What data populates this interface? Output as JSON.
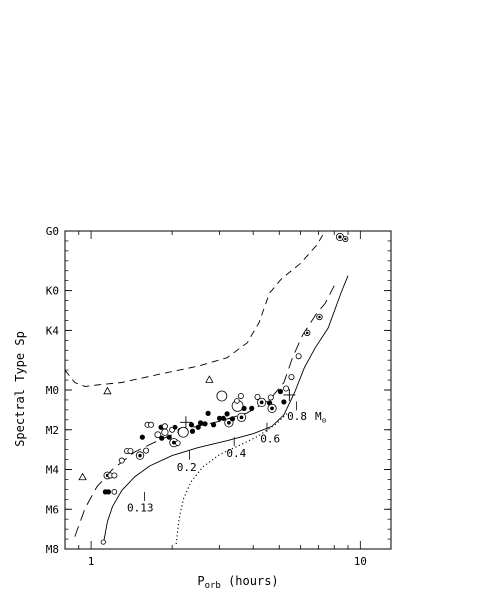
{
  "chart_data": {
    "type": "scatter",
    "xlabel_main": "P",
    "xlabel_sub": "orb",
    "xlabel_rest": " (hours)",
    "ylabel": "Spectral Type Sp",
    "x_scale": "log",
    "x_ticks": [
      {
        "value": 1,
        "label": "1"
      },
      {
        "value": 10,
        "label": "10"
      }
    ],
    "y_ticks": [
      {
        "value": 0,
        "label": "G0"
      },
      {
        "value": 12,
        "label": "K0"
      },
      {
        "value": 20,
        "label": "K4"
      },
      {
        "value": 32,
        "label": "M0"
      },
      {
        "value": 40,
        "label": "M2"
      },
      {
        "value": 48,
        "label": "M4"
      },
      {
        "value": 56,
        "label": "M6"
      },
      {
        "value": 64,
        "label": "M8"
      }
    ],
    "xlim": [
      0.8,
      13
    ],
    "ylim": [
      0,
      64
    ],
    "annotations": [
      {
        "text": "0.13",
        "x": 1.58,
        "y": 52.5,
        "tx": 1.36,
        "ty": 56.5
      },
      {
        "text": "0.2",
        "x": 2.32,
        "y": 44.2,
        "tx": 2.08,
        "ty": 48.3
      },
      {
        "text": "0.4",
        "x": 3.4,
        "y": 41.5,
        "tx": 3.18,
        "ty": 45.5
      },
      {
        "text": "0.6",
        "x": 4.5,
        "y": 38.6,
        "tx": 4.25,
        "ty": 42.6
      },
      {
        "text": "0.8",
        "x": 5.8,
        "y": 34.3,
        "tx": 5.35,
        "ty": 38.0
      }
    ],
    "mass_unit_main": "M",
    "mass_unit_sub": "⊙",
    "series": [
      {
        "style": "solid",
        "points": [
          [
            1.11,
            63
          ],
          [
            1.15,
            58.5
          ],
          [
            1.2,
            55.5
          ],
          [
            1.3,
            52.2
          ],
          [
            1.45,
            49.5
          ],
          [
            1.65,
            47.3
          ],
          [
            2.0,
            45.2
          ],
          [
            2.5,
            43.6
          ],
          [
            3.2,
            42.2
          ],
          [
            4.0,
            40.8
          ],
          [
            4.7,
            39.3
          ],
          [
            5.2,
            37
          ],
          [
            5.7,
            32.5
          ],
          [
            6.2,
            27.5
          ],
          [
            6.8,
            23.5
          ],
          [
            7.6,
            19.5
          ],
          [
            8.5,
            12.3
          ],
          [
            9.0,
            9
          ]
        ]
      },
      {
        "style": "dotted",
        "points": [
          [
            2.07,
            63
          ],
          [
            2.12,
            58
          ],
          [
            2.2,
            54
          ],
          [
            2.35,
            50.5
          ],
          [
            2.6,
            47.5
          ],
          [
            3.0,
            45
          ],
          [
            3.6,
            43
          ],
          [
            4.2,
            41.2
          ],
          [
            4.9,
            38.7
          ],
          [
            5.4,
            36.5
          ]
        ]
      },
      {
        "style": "long-dash",
        "points": [
          [
            0.87,
            61.5
          ],
          [
            0.95,
            55.8
          ],
          [
            1.05,
            51.5
          ],
          [
            1.2,
            48
          ],
          [
            1.45,
            44.5
          ],
          [
            1.8,
            42
          ],
          [
            2.3,
            39.7
          ],
          [
            3.0,
            38.3
          ],
          [
            3.8,
            36.6
          ],
          [
            4.6,
            34
          ],
          [
            5.2,
            30.5
          ],
          [
            5.6,
            25.5
          ],
          [
            6.1,
            21
          ],
          [
            6.9,
            16.5
          ],
          [
            7.4,
            14.6
          ],
          [
            8.0,
            11
          ]
        ]
      },
      {
        "style": "short-dash",
        "points": [
          [
            0.8,
            28
          ],
          [
            0.87,
            30.5
          ],
          [
            0.95,
            31.3
          ],
          [
            1.05,
            31
          ],
          [
            1.3,
            30.5
          ],
          [
            1.8,
            28.8
          ],
          [
            2.5,
            27.2
          ],
          [
            3.2,
            25.5
          ],
          [
            3.8,
            22.5
          ],
          [
            4.2,
            18.5
          ],
          [
            4.6,
            12.5
          ],
          [
            5.1,
            9.6
          ],
          [
            6.0,
            6.5
          ],
          [
            6.9,
            2.8
          ],
          [
            7.4,
            0
          ]
        ]
      }
    ],
    "points": [
      {
        "x": 1.11,
        "y": 62.6,
        "m": "open",
        "s": 2.2
      },
      {
        "x": 1.13,
        "y": 52.5,
        "m": "filled",
        "s": 2.6
      },
      {
        "x": 1.16,
        "y": 52.5,
        "m": "filled",
        "s": 2.6
      },
      {
        "x": 1.15,
        "y": 49.2,
        "m": "dotted",
        "s": 3.5
      },
      {
        "x": 1.18,
        "y": 49.2,
        "m": "open",
        "s": 2.6
      },
      {
        "x": 1.22,
        "y": 49.2,
        "m": "open",
        "s": 2.6
      },
      {
        "x": 1.22,
        "y": 52.5,
        "m": "open",
        "s": 2.4
      },
      {
        "x": 1.3,
        "y": 46.2,
        "m": "open",
        "s": 2.6
      },
      {
        "x": 1.36,
        "y": 44.3,
        "m": "open",
        "s": 2.6
      },
      {
        "x": 1.4,
        "y": 44.3,
        "m": "open",
        "s": 2.6
      },
      {
        "x": 1.52,
        "y": 45.2,
        "m": "dotted",
        "s": 3.8
      },
      {
        "x": 1.6,
        "y": 44.2,
        "m": "open",
        "s": 2.6
      },
      {
        "x": 1.55,
        "y": 41.5,
        "m": "filled",
        "s": 2.6
      },
      {
        "x": 1.62,
        "y": 39.0,
        "m": "open",
        "s": 2.6
      },
      {
        "x": 1.67,
        "y": 39.0,
        "m": "open",
        "s": 2.6
      },
      {
        "x": 1.77,
        "y": 41.0,
        "m": "open",
        "s": 3.0
      },
      {
        "x": 1.83,
        "y": 41.7,
        "m": "filled",
        "s": 2.6
      },
      {
        "x": 1.82,
        "y": 39.5,
        "m": "filled",
        "s": 2.6
      },
      {
        "x": 1.88,
        "y": 40.5,
        "m": "open",
        "s": 3.2
      },
      {
        "x": 1.88,
        "y": 39.3,
        "m": "open",
        "s": 2.6
      },
      {
        "x": 1.95,
        "y": 41.5,
        "m": "filled",
        "s": 2.6
      },
      {
        "x": 2.0,
        "y": 40.0,
        "m": "open",
        "s": 2.6
      },
      {
        "x": 2.03,
        "y": 42.6,
        "m": "dotted",
        "s": 4.2
      },
      {
        "x": 2.1,
        "y": 42.7,
        "m": "open",
        "s": 2.4
      },
      {
        "x": 2.05,
        "y": 39.5,
        "m": "filled",
        "s": 2.4
      },
      {
        "x": 2.15,
        "y": 40.2,
        "m": "open",
        "s": 2.6
      },
      {
        "x": 2.2,
        "y": 40.5,
        "m": "open",
        "s": 5.0
      },
      {
        "x": 2.25,
        "y": 38.5,
        "m": "cross",
        "s": 6
      },
      {
        "x": 2.36,
        "y": 39.0,
        "m": "filled",
        "s": 2.6
      },
      {
        "x": 2.38,
        "y": 40.3,
        "m": "filled",
        "s": 2.6
      },
      {
        "x": 2.5,
        "y": 39.5,
        "m": "filled",
        "s": 2.6
      },
      {
        "x": 2.55,
        "y": 38.6,
        "m": "filled",
        "s": 2.6
      },
      {
        "x": 2.65,
        "y": 38.8,
        "m": "filled",
        "s": 2.6
      },
      {
        "x": 2.72,
        "y": 36.7,
        "m": "filled",
        "s": 2.6
      },
      {
        "x": 2.85,
        "y": 39.0,
        "m": "filled",
        "s": 2.6
      },
      {
        "x": 3.0,
        "y": 37.7,
        "m": "filled",
        "s": 2.6
      },
      {
        "x": 3.06,
        "y": 33.2,
        "m": "open",
        "s": 5.0
      },
      {
        "x": 3.1,
        "y": 37.7,
        "m": "filled",
        "s": 2.6
      },
      {
        "x": 3.2,
        "y": 36.8,
        "m": "filled",
        "s": 2.6
      },
      {
        "x": 3.25,
        "y": 38.6,
        "m": "dotted",
        "s": 4.2
      },
      {
        "x": 3.35,
        "y": 37.8,
        "m": "filled",
        "s": 2.6
      },
      {
        "x": 3.5,
        "y": 35.2,
        "m": "open",
        "s": 5.5
      },
      {
        "x": 3.6,
        "y": 33.2,
        "m": "open",
        "s": 2.6
      },
      {
        "x": 3.48,
        "y": 34.2,
        "m": "open",
        "s": 2.4
      },
      {
        "x": 3.62,
        "y": 37.5,
        "m": "dotted",
        "s": 4.2
      },
      {
        "x": 3.7,
        "y": 35.7,
        "m": "filled",
        "s": 2.6
      },
      {
        "x": 3.95,
        "y": 35.7,
        "m": "filled",
        "s": 2.6
      },
      {
        "x": 4.15,
        "y": 33.4,
        "m": "open",
        "s": 2.6
      },
      {
        "x": 4.3,
        "y": 34.5,
        "m": "dotted",
        "s": 4.2
      },
      {
        "x": 4.6,
        "y": 34.6,
        "m": "filled",
        "s": 2.6
      },
      {
        "x": 4.7,
        "y": 35.7,
        "m": "dotted",
        "s": 4.2
      },
      {
        "x": 4.65,
        "y": 33.5,
        "m": "open",
        "s": 2.6
      },
      {
        "x": 5.05,
        "y": 32.3,
        "m": "filled",
        "s": 2.6
      },
      {
        "x": 5.2,
        "y": 34.4,
        "m": "filled",
        "s": 2.6
      },
      {
        "x": 5.3,
        "y": 31.7,
        "m": "open",
        "s": 2.6
      },
      {
        "x": 5.45,
        "y": 33.0,
        "m": "cross",
        "s": 6
      },
      {
        "x": 5.55,
        "y": 29.4,
        "m": "open",
        "s": 2.6
      },
      {
        "x": 5.9,
        "y": 25.2,
        "m": "open",
        "s": 2.6
      },
      {
        "x": 6.35,
        "y": 20.5,
        "m": "dotted",
        "s": 2.8
      },
      {
        "x": 7.05,
        "y": 17.3,
        "m": "dotted",
        "s": 2.8
      },
      {
        "x": 8.4,
        "y": 1.2,
        "m": "dotted",
        "s": 3.6
      },
      {
        "x": 8.8,
        "y": 1.6,
        "m": "dotted",
        "s": 2.6
      },
      {
        "x": 0.93,
        "y": 49.5,
        "m": "triangle",
        "s": 3.5
      },
      {
        "x": 1.15,
        "y": 32.2,
        "m": "triangle",
        "s": 3.5
      },
      {
        "x": 2.75,
        "y": 29.9,
        "m": "triangle",
        "s": 3.5
      }
    ]
  }
}
